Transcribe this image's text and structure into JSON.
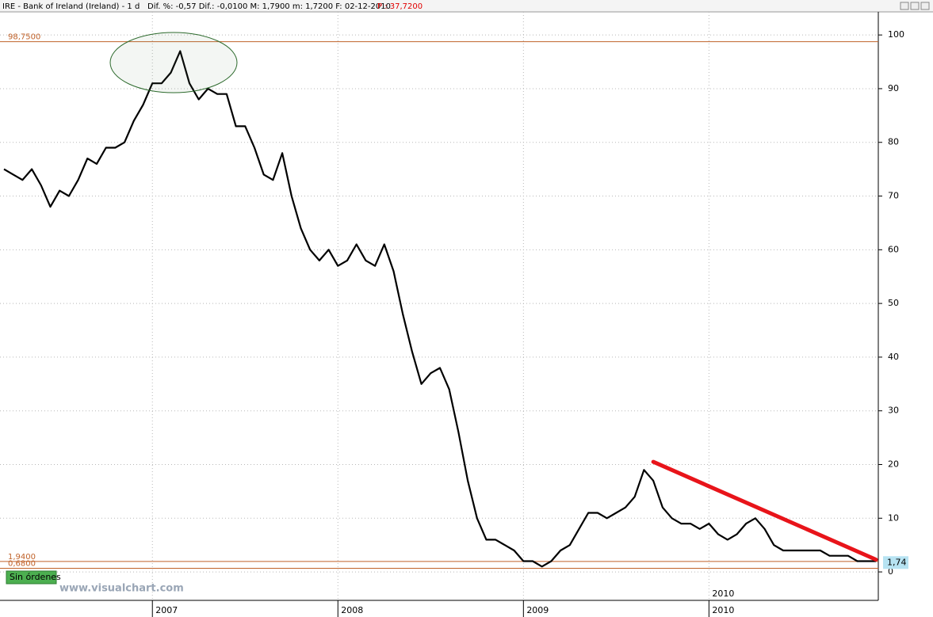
{
  "header": {
    "symbol": "IRE - Bank of Ireland (Ireland) - 1 d",
    "stats": "Dif. %: -0,57  Dif.: -0,0100  M: 1,7900  m: 1,7200  F: 02-12-2010",
    "price": "P : 37,7200"
  },
  "chart_data": {
    "type": "line",
    "categories": [
      null,
      null,
      null,
      null,
      null,
      null,
      null,
      null,
      null,
      null,
      null,
      null,
      null,
      null,
      null,
      null,
      "2007",
      null,
      null,
      null,
      null,
      null,
      null,
      null,
      null,
      null,
      null,
      null,
      null,
      null,
      null,
      null,
      null,
      null,
      null,
      null,
      "2008",
      null,
      null,
      null,
      null,
      null,
      null,
      null,
      null,
      null,
      null,
      null,
      null,
      null,
      null,
      null,
      null,
      null,
      null,
      null,
      "2009",
      null,
      null,
      null,
      null,
      null,
      null,
      null,
      null,
      null,
      null,
      null,
      null,
      null,
      null,
      null,
      null,
      null,
      null,
      null,
      "2010",
      null,
      null,
      null,
      null,
      null,
      null,
      null,
      null,
      null,
      null,
      null,
      null,
      null,
      null,
      null,
      null,
      null,
      null
    ],
    "series": [
      {
        "name": "IRE",
        "color": "#000000",
        "values": [
          75,
          74,
          73,
          75,
          72,
          68,
          71,
          70,
          73,
          77,
          76,
          79,
          79,
          80,
          84,
          87,
          91,
          91,
          93,
          97,
          91,
          88,
          90,
          89,
          89,
          83,
          83,
          79,
          74,
          73,
          78,
          70,
          64,
          60,
          58,
          60,
          57,
          58,
          61,
          58,
          57,
          61,
          56,
          48,
          41,
          35,
          37,
          38,
          34,
          26,
          17,
          10,
          6,
          6,
          5,
          4,
          2,
          2,
          1,
          2,
          4,
          5,
          8,
          11,
          11,
          10,
          11,
          12,
          14,
          19,
          17,
          12,
          10,
          9,
          9,
          8,
          9,
          7,
          6,
          7,
          9,
          10,
          8,
          5,
          4,
          4,
          4,
          4,
          4,
          3,
          3,
          3,
          2,
          2,
          2
        ]
      }
    ],
    "ylim": [
      -5.3,
      104.3
    ],
    "yticks": [
      0,
      10,
      20,
      30,
      40,
      50,
      60,
      70,
      80,
      90,
      100
    ],
    "grid": true,
    "hlines": [
      {
        "value": 98.75,
        "label": "98,7500"
      },
      {
        "value": 1.94,
        "label": "1,9400"
      },
      {
        "value": 0.68,
        "label": "0,6800"
      }
    ],
    "hline_color": "#c0622a",
    "last_price": {
      "value": 1.74,
      "label": "1,74"
    },
    "trendline": {
      "color": "#e8141a",
      "x": [
        70,
        94
      ],
      "y": [
        20.5,
        2.3
      ]
    }
  },
  "footer": {
    "button": "Sin órdenes",
    "watermark": "www.visualchart.com"
  }
}
